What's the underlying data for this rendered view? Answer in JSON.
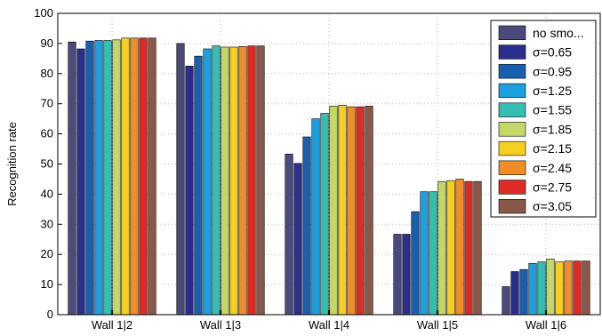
{
  "chart_data": {
    "type": "bar",
    "title": "",
    "xlabel": "",
    "ylabel": "Recognition rate",
    "ylim": [
      0,
      100
    ],
    "yticks": [
      0,
      10,
      20,
      30,
      40,
      50,
      60,
      70,
      80,
      90,
      100
    ],
    "grid": true,
    "legend_position": "top-right",
    "categories": [
      "Wall 1|2",
      "Wall 1|3",
      "Wall 1|4",
      "Wall 1|5",
      "Wall 1|6"
    ],
    "series": [
      {
        "name": "no smo...",
        "color": "#4b4a7d",
        "values": [
          90.5,
          90.0,
          53.3,
          26.7,
          9.3
        ]
      },
      {
        "name": "σ=0.65",
        "color": "#2c2e8f",
        "values": [
          88.2,
          82.5,
          50.2,
          26.7,
          14.3
        ]
      },
      {
        "name": "σ=0.95",
        "color": "#1a5fad",
        "values": [
          90.8,
          85.8,
          59.0,
          34.2,
          15.0
        ]
      },
      {
        "name": "σ=1.25",
        "color": "#1ea0e0",
        "values": [
          91.0,
          88.2,
          65.0,
          40.8,
          17.0
        ]
      },
      {
        "name": "σ=1.55",
        "color": "#35bfb2",
        "values": [
          91.0,
          89.2,
          66.8,
          40.8,
          17.5
        ]
      },
      {
        "name": "σ=1.85",
        "color": "#c5d866",
        "values": [
          91.2,
          88.8,
          69.2,
          44.2,
          18.5
        ]
      },
      {
        "name": "σ=2.15",
        "color": "#f7cf1e",
        "values": [
          91.8,
          88.8,
          69.5,
          44.5,
          17.5
        ]
      },
      {
        "name": "σ=2.45",
        "color": "#f18d27",
        "values": [
          91.8,
          89.0,
          69.0,
          45.0,
          17.8
        ]
      },
      {
        "name": "σ=2.75",
        "color": "#dd2c26",
        "values": [
          91.8,
          89.2,
          69.0,
          44.2,
          17.8
        ]
      },
      {
        "name": "σ=3.05",
        "color": "#8a5849",
        "values": [
          91.8,
          89.2,
          69.2,
          44.2,
          17.8
        ]
      }
    ]
  }
}
